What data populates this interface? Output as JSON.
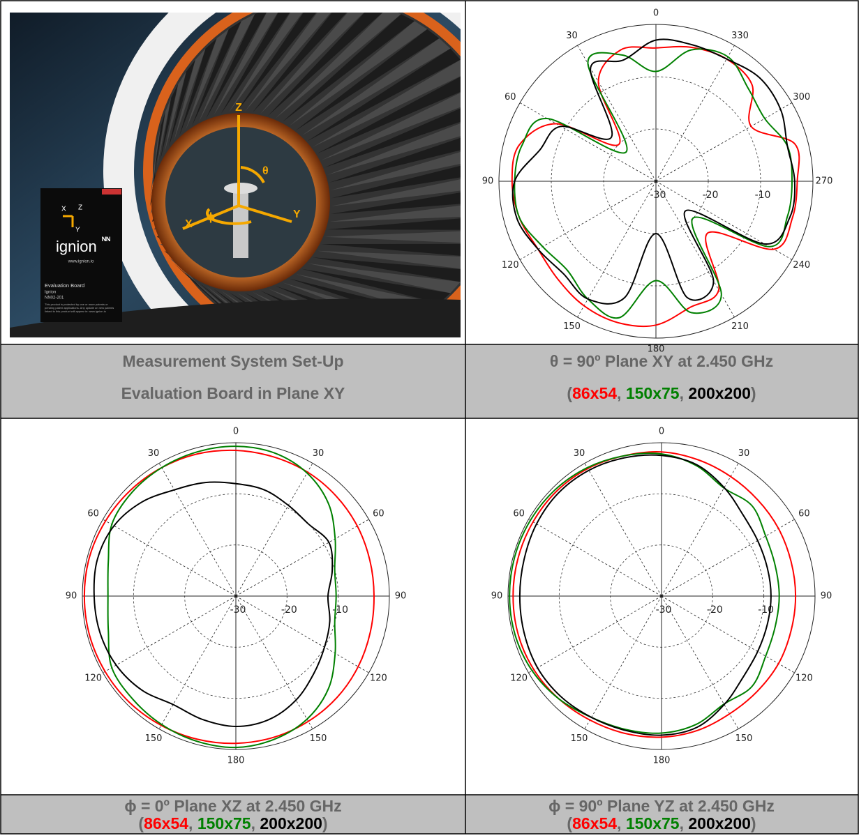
{
  "photo": {
    "axes": {
      "z": "Z",
      "theta": "θ",
      "x": "X",
      "y": "Y",
      "phi": "ϕ"
    },
    "board": {
      "axes": {
        "x": "X",
        "z": "Z",
        "y": "Y"
      },
      "brand": "ignion",
      "brand_mark": "ᴺᴺ",
      "url": "www.ignion.io",
      "title": "Evaluation Board",
      "maker": "Ignion",
      "model": "NN02-201",
      "notice": [
        "This product is protected by one or more patents or",
        "pending patent applications. Any update on new patents",
        "linked to this product will appear in: www.ignion.io"
      ]
    }
  },
  "table": {
    "captions": [
      {
        "lines": [
          [
            {
              "text": "Measurement System Set-Up",
              "color": "#666666"
            }
          ],
          [
            {
              "text": "Evaluation Board in Plane XY",
              "color": "#666666"
            }
          ]
        ]
      },
      {
        "lines": [
          [
            {
              "text": "θ = 90º Plane XY at 2.450 GHz",
              "color": "#666666"
            }
          ],
          [
            {
              "text": "(",
              "color": "#666666"
            },
            {
              "text": "86x54",
              "color": "#ff0000"
            },
            {
              "text": ", ",
              "color": "#666666"
            },
            {
              "text": "150x75",
              "color": "#008000"
            },
            {
              "text": ", ",
              "color": "#666666"
            },
            {
              "text": "200x200",
              "color": "#000000"
            },
            {
              "text": ")",
              "color": "#666666"
            }
          ]
        ]
      },
      {
        "lines": [
          [
            {
              "text": "ϕ = 0º Plane XZ at 2.450 GHz",
              "color": "#666666"
            }
          ],
          [
            {
              "text": "(",
              "color": "#666666"
            },
            {
              "text": "86x54",
              "color": "#ff0000"
            },
            {
              "text": ", ",
              "color": "#666666"
            },
            {
              "text": "150x75",
              "color": "#008000"
            },
            {
              "text": ", ",
              "color": "#666666"
            },
            {
              "text": "200x200",
              "color": "#000000"
            },
            {
              "text": ")",
              "color": "#666666"
            }
          ]
        ]
      },
      {
        "lines": [
          [
            {
              "text": "ϕ = 90º Plane YZ at 2.450 GHz",
              "color": "#666666"
            }
          ],
          [
            {
              "text": "(",
              "color": "#666666"
            },
            {
              "text": "86x54",
              "color": "#ff0000"
            },
            {
              "text": ", ",
              "color": "#666666"
            },
            {
              "text": "150x75",
              "color": "#008000"
            },
            {
              "text": ", ",
              "color": "#666666"
            },
            {
              "text": "200x200",
              "color": "#000000"
            },
            {
              "text": ")",
              "color": "#666666"
            }
          ]
        ]
      }
    ]
  },
  "chart_data": [
    {
      "type": "polar",
      "direction": "counterclockwise",
      "rlim": [
        -30,
        0
      ],
      "rticks": [
        -30,
        -20,
        -10
      ],
      "angle_ticks": [
        0,
        30,
        60,
        90,
        120,
        150,
        180,
        210,
        240,
        270,
        300,
        330
      ],
      "theta": [
        0,
        15,
        30,
        45,
        60,
        75,
        90,
        105,
        120,
        135,
        150,
        165,
        180,
        195,
        210,
        225,
        240,
        255,
        270,
        285,
        300,
        315,
        330,
        345
      ],
      "series": [
        {
          "color": "#ff0000",
          "values": [
            -4.5,
            -4,
            -8,
            -20,
            -8,
            -3,
            -2.5,
            -3,
            -4,
            -3.5,
            -2.5,
            -2,
            -2.5,
            -5,
            -6,
            -16,
            -4,
            -3,
            -3,
            -2.5,
            -9,
            -4,
            -3,
            -3.5
          ]
        },
        {
          "color": "#008000",
          "values": [
            -9,
            -5,
            -4,
            -22,
            -6,
            -3.5,
            -3,
            -3,
            -5,
            -6,
            -4,
            -3,
            -11,
            -4,
            -5,
            -20,
            -5,
            -4,
            -4,
            -4,
            -6,
            -5,
            -2.5,
            -4
          ]
        },
        {
          "color": "#000000",
          "values": [
            -3,
            -6,
            -5,
            -18,
            -9,
            -7,
            -3,
            -2.5,
            -4,
            -5,
            -4,
            -7,
            -20,
            -7,
            -8,
            -22,
            -6,
            -3.5,
            -3.5,
            -4,
            -2.5,
            -2,
            -3,
            -3
          ]
        }
      ]
    },
    {
      "type": "polar",
      "direction": "counterclockwise",
      "rlim": [
        -30,
        0
      ],
      "rticks": [
        -30,
        -20,
        -10
      ],
      "angle_ticks": [
        0,
        30,
        60,
        90,
        120,
        150,
        180,
        {
          "value": 210,
          "label": "150"
        },
        {
          "value": 240,
          "label": "120"
        },
        {
          "value": 270,
          "label": "90"
        },
        {
          "value": 300,
          "label": "60"
        },
        {
          "value": 330,
          "label": "30"
        }
      ],
      "theta": [
        0,
        15,
        30,
        45,
        60,
        75,
        90,
        105,
        120,
        135,
        150,
        165,
        180,
        195,
        210,
        225,
        240,
        255,
        270,
        285,
        300,
        315,
        330,
        345
      ],
      "series": [
        {
          "color": "#ff0000",
          "values": [
            -1.5,
            -1.2,
            -1,
            -0.8,
            -0.6,
            -0.4,
            -0.4,
            -0.4,
            -0.5,
            -0.6,
            -0.8,
            -1,
            -1.2,
            -1.4,
            -1.7,
            -2,
            -2.4,
            -2.8,
            -3,
            -2.9,
            -2.6,
            -2.3,
            -2,
            -1.8
          ]
        },
        {
          "color": "#008000",
          "values": [
            -0.7,
            -0.8,
            -1,
            -1.3,
            -2,
            -4.2,
            -5,
            -4.2,
            -2,
            -1.5,
            -1,
            -0.6,
            -0.4,
            -1,
            -2.2,
            -4.4,
            -7.6,
            -10,
            -10.4,
            -10,
            -7.6,
            -4.4,
            -2.2,
            -1
          ]
        },
        {
          "color": "#000000",
          "values": [
            -8,
            -7,
            -6,
            -4,
            -2.5,
            -2,
            -2.3,
            -2.5,
            -3,
            -4,
            -5.5,
            -5,
            -4.5,
            -5,
            -6.5,
            -8.5,
            -10,
            -11,
            -12,
            -10.5,
            -9,
            -10,
            -9.5,
            -8.5
          ]
        }
      ]
    },
    {
      "type": "polar",
      "direction": "counterclockwise",
      "rlim": [
        -30,
        0
      ],
      "rticks": [
        -30,
        -20,
        -10
      ],
      "angle_ticks": [
        0,
        30,
        60,
        90,
        120,
        150,
        180,
        {
          "value": 210,
          "label": "150"
        },
        {
          "value": 240,
          "label": "120"
        },
        {
          "value": 270,
          "label": "90"
        },
        {
          "value": 300,
          "label": "60"
        },
        {
          "value": 330,
          "label": "30"
        }
      ],
      "theta": [
        0,
        15,
        30,
        45,
        60,
        75,
        90,
        105,
        120,
        135,
        150,
        165,
        180,
        195,
        210,
        225,
        240,
        255,
        270,
        285,
        300,
        315,
        330,
        345
      ],
      "series": [
        {
          "color": "#ff0000",
          "values": [
            -1.8,
            -1.6,
            -1.2,
            -1,
            -1,
            -1,
            -1,
            -1,
            -1.2,
            -1.6,
            -2,
            -2.2,
            -2.4,
            -2.8,
            -3.4,
            -3.6,
            -3.6,
            -3.8,
            -3.8,
            -3.8,
            -3.6,
            -3.4,
            -3,
            -2.4
          ]
        },
        {
          "color": "#008000",
          "values": [
            -2.2,
            -1.6,
            -1,
            -0.6,
            -0.4,
            -0.3,
            -0.3,
            -0.4,
            -0.8,
            -1.6,
            -2.6,
            -3,
            -3.2,
            -4,
            -5.6,
            -5,
            -6.5,
            -7,
            -7,
            -7,
            -6.5,
            -5,
            -5.6,
            -3.6
          ]
        },
        {
          "color": "#000000",
          "values": [
            -2.5,
            -2,
            -1.6,
            -1.5,
            -1.8,
            -2.2,
            -2.3,
            -2.2,
            -2,
            -2.2,
            -2.6,
            -2.8,
            -2.8,
            -3.4,
            -5.5,
            -7.5,
            -8.3,
            -8.6,
            -8.6,
            -8.6,
            -8.3,
            -7.5,
            -5.5,
            -3.4
          ]
        }
      ]
    }
  ]
}
